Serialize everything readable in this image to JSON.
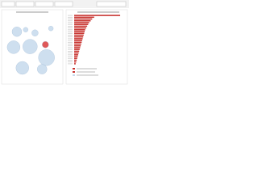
{
  "chart_data": [
    {
      "type": "scatter",
      "xlim": [
        0,
        10
      ],
      "ylim": [
        0,
        10
      ],
      "series": [
        {
          "color": "#c6d9ec",
          "x": [
            2.2,
            3.8,
            5.5,
            1.6,
            4.6,
            3.2,
            7.6,
            6.8,
            8.4
          ],
          "y": [
            7.6,
            7.9,
            7.4,
            5.2,
            5.3,
            2.0,
            3.6,
            1.8,
            8.1
          ],
          "sizes": [
            6,
            3,
            4,
            8,
            9,
            8,
            10,
            6,
            3
          ]
        },
        {
          "color": "#d93b3b",
          "x": [
            7.4
          ],
          "y": [
            5.6
          ],
          "sizes": [
            4
          ]
        }
      ]
    },
    {
      "type": "hbar",
      "categories": [
        null,
        null,
        null,
        null,
        null,
        null,
        null,
        null,
        null,
        null,
        null,
        null,
        null,
        null,
        null,
        null,
        null,
        null,
        null,
        null,
        null,
        null,
        null,
        null,
        null,
        null,
        null,
        null
      ],
      "values": [
        92,
        40,
        36,
        33,
        30,
        28,
        26,
        24,
        22,
        21,
        20,
        19,
        18,
        17,
        16,
        15,
        14,
        13,
        12,
        11,
        10,
        9,
        8,
        7,
        6,
        5,
        4,
        3
      ],
      "color": "#c8332f",
      "xlim": [
        0,
        100
      ]
    }
  ]
}
